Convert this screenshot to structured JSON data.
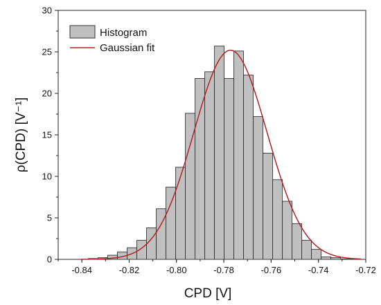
{
  "chart_data": {
    "type": "bar",
    "title": "",
    "xlabel": "CPD [V]",
    "ylabel": "ρ(CPD) [V⁻¹]",
    "xlim": [
      -0.85,
      -0.72
    ],
    "ylim": [
      0,
      30
    ],
    "xticks": [
      "-0.84",
      "-0.82",
      "-0.80",
      "-0.78",
      "-0.76",
      "-0.74",
      "-0.72"
    ],
    "xtick_values": [
      -0.84,
      -0.82,
      -0.8,
      -0.78,
      -0.76,
      -0.74,
      -0.72
    ],
    "yticks": [
      "0",
      "5",
      "10",
      "15",
      "20",
      "25",
      "30"
    ],
    "ytick_values": [
      0,
      5,
      10,
      15,
      20,
      25,
      30
    ],
    "grid": false,
    "legend": {
      "placement": "top-left"
    },
    "series": [
      {
        "name": "Histogram",
        "type": "bar",
        "color": "#c0c0c0",
        "bin_width": 0.0041,
        "bin_centers": [
          -0.8352,
          -0.8311,
          -0.827,
          -0.8229,
          -0.8188,
          -0.8147,
          -0.8106,
          -0.8065,
          -0.8024,
          -0.7983,
          -0.7942,
          -0.7901,
          -0.786,
          -0.7819,
          -0.7778,
          -0.7737,
          -0.7696,
          -0.7655,
          -0.7614,
          -0.7573,
          -0.7532,
          -0.7491,
          -0.745,
          -0.7409,
          -0.7368,
          -0.7327,
          -0.7286
        ],
        "values": [
          0.1,
          0.2,
          0.5,
          0.9,
          1.4,
          2.3,
          3.8,
          6.1,
          8.7,
          11.1,
          17.6,
          21.8,
          22.6,
          25.7,
          21.8,
          25.1,
          22.2,
          17.2,
          12.8,
          9.6,
          7.0,
          4.3,
          2.3,
          1.2,
          0.3,
          0.2,
          0.05
        ]
      },
      {
        "name": "Gaussian fit",
        "type": "line",
        "color": "#b22222",
        "mean": -0.7772,
        "sigma": 0.0155,
        "amplitude": 25.2
      }
    ]
  }
}
